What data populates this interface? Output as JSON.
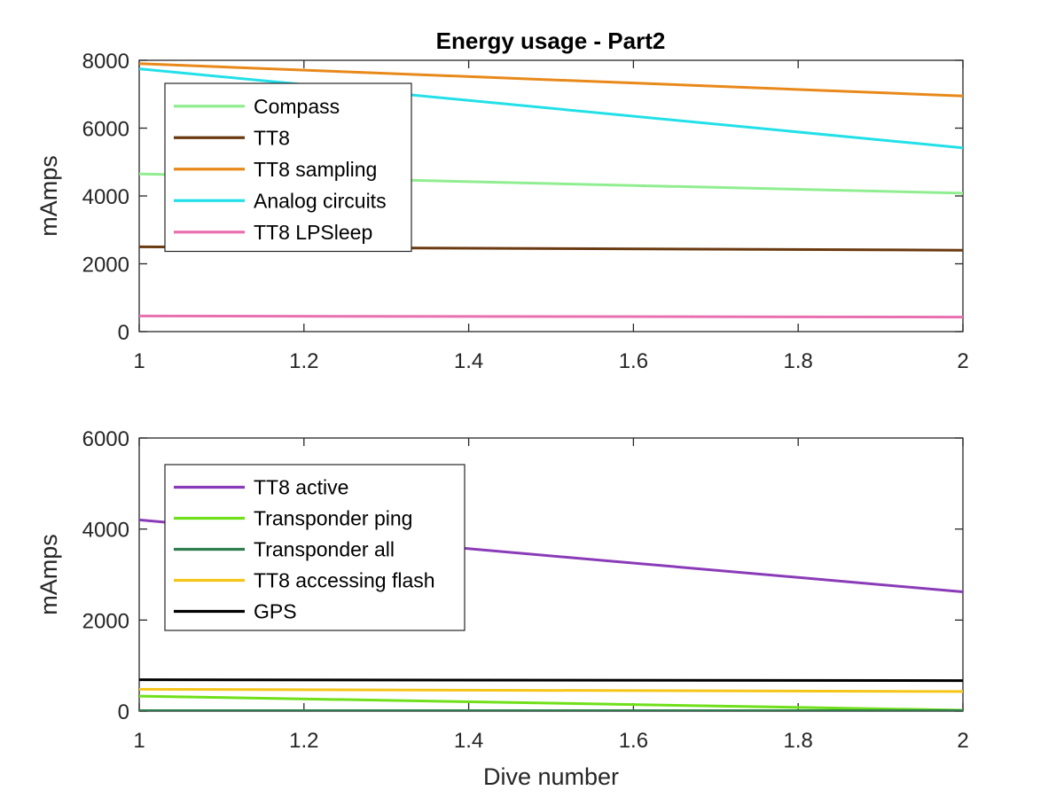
{
  "figure": {
    "title": "Energy usage - Part2"
  },
  "chart_data": [
    {
      "type": "line",
      "title": "Energy usage - Part2",
      "xlabel": "",
      "ylabel": "mAmps",
      "xlim": [
        1,
        2
      ],
      "ylim": [
        0,
        8000
      ],
      "xticks": [
        1,
        1.2,
        1.4,
        1.6,
        1.8,
        2
      ],
      "xtick_labels": [
        "1",
        "1.2",
        "1.4",
        "1.6",
        "1.8",
        "2"
      ],
      "yticks": [
        0,
        2000,
        4000,
        6000,
        8000
      ],
      "ytick_labels": [
        "0",
        "2000",
        "4000",
        "6000",
        "8000"
      ],
      "grid": false,
      "legend_position": "top-left",
      "x": [
        1,
        2
      ],
      "series": [
        {
          "name": "Compass",
          "color": "#90ee90",
          "values": [
            4650,
            4080
          ]
        },
        {
          "name": "TT8",
          "color": "#6b3a10",
          "values": [
            2500,
            2400
          ]
        },
        {
          "name": "TT8 sampling",
          "color": "#e8891a",
          "values": [
            7900,
            6950
          ]
        },
        {
          "name": "Analog circuits",
          "color": "#22e0e8",
          "values": [
            7750,
            5420
          ]
        },
        {
          "name": "TT8 LPSleep",
          "color": "#e870b0",
          "values": [
            460,
            430
          ]
        }
      ]
    },
    {
      "type": "line",
      "title": "",
      "xlabel": "Dive number",
      "ylabel": "mAmps",
      "xlim": [
        1,
        2
      ],
      "ylim": [
        0,
        6000
      ],
      "xticks": [
        1,
        1.2,
        1.4,
        1.6,
        1.8,
        2
      ],
      "xtick_labels": [
        "1",
        "1.2",
        "1.4",
        "1.6",
        "1.8",
        "2"
      ],
      "yticks": [
        0,
        2000,
        4000,
        6000
      ],
      "ytick_labels": [
        "0",
        "2000",
        "4000",
        "6000"
      ],
      "grid": false,
      "legend_position": "top-left",
      "x": [
        1,
        2
      ],
      "series": [
        {
          "name": "TT8 active",
          "color": "#8a3bb8",
          "values": [
            4200,
            2620
          ]
        },
        {
          "name": "Transponder ping",
          "color": "#6fe019",
          "values": [
            330,
            20
          ]
        },
        {
          "name": "Transponder all",
          "color": "#2e7d4f",
          "values": [
            10,
            10
          ]
        },
        {
          "name": "TT8 accessing flash",
          "color": "#f5c518",
          "values": [
            480,
            430
          ]
        },
        {
          "name": "GPS",
          "color": "#000000",
          "values": [
            690,
            670
          ]
        }
      ]
    }
  ]
}
